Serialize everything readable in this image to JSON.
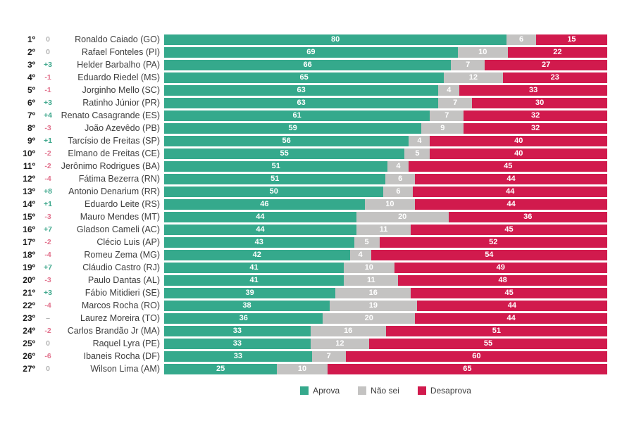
{
  "colors": {
    "aprova": "#35A98C",
    "nao_sei": "#C4C3C2",
    "desaprova": "#D11A4D",
    "change_up": "#3FA88D",
    "change_down": "#E2738E",
    "change_neutral": "#B4B4B4"
  },
  "legend": {
    "items": [
      {
        "label": "Aprova",
        "color": "#35A98C"
      },
      {
        "label": "Não sei",
        "color": "#C4C3C2"
      },
      {
        "label": "Desaprova",
        "color": "#D11A4D"
      }
    ]
  },
  "chart_data": {
    "type": "bar",
    "subtype": "horizontal-stacked",
    "unit": "%",
    "xlim": [
      0,
      100
    ],
    "grid": false,
    "legend_position": "bottom",
    "series_labels": [
      "Aprova",
      "Não sei",
      "Desaprova"
    ],
    "rows": [
      {
        "rank": "1º",
        "change": "0",
        "change_dir": "zero",
        "name": "Ronaldo Caiado (GO)",
        "aprova": 80,
        "nao_sei": 6,
        "desaprova": 15
      },
      {
        "rank": "2º",
        "change": "0",
        "change_dir": "zero",
        "name": "Rafael Fonteles (PI)",
        "aprova": 69,
        "nao_sei": 10,
        "desaprova": 22
      },
      {
        "rank": "3º",
        "change": "+3",
        "change_dir": "up",
        "name": "Helder Barbalho (PA)",
        "aprova": 66,
        "nao_sei": 7,
        "desaprova": 27
      },
      {
        "rank": "4º",
        "change": "-1",
        "change_dir": "down",
        "name": "Eduardo Riedel (MS)",
        "aprova": 65,
        "nao_sei": 12,
        "desaprova": 23
      },
      {
        "rank": "5º",
        "change": "-1",
        "change_dir": "down",
        "name": "Jorginho Mello (SC)",
        "aprova": 63,
        "nao_sei": 4,
        "desaprova": 33
      },
      {
        "rank": "6º",
        "change": "+3",
        "change_dir": "up",
        "name": "Ratinho Júnior (PR)",
        "aprova": 63,
        "nao_sei": 7,
        "desaprova": 30
      },
      {
        "rank": "7º",
        "change": "+4",
        "change_dir": "up",
        "name": "Renato Casagrande (ES)",
        "aprova": 61,
        "nao_sei": 7,
        "desaprova": 32
      },
      {
        "rank": "8º",
        "change": "-3",
        "change_dir": "down",
        "name": "João Azevêdo (PB)",
        "aprova": 59,
        "nao_sei": 9,
        "desaprova": 32
      },
      {
        "rank": "9º",
        "change": "+1",
        "change_dir": "up",
        "name": "Tarcísio de Freitas (SP)",
        "aprova": 56,
        "nao_sei": 4,
        "desaprova": 40
      },
      {
        "rank": "10º",
        "change": "-2",
        "change_dir": "down",
        "name": "Elmano de Freitas (CE)",
        "aprova": 55,
        "nao_sei": 5,
        "desaprova": 40
      },
      {
        "rank": "11º",
        "change": "-2",
        "change_dir": "down",
        "name": "Jerônimo Rodrigues (BA)",
        "aprova": 51,
        "nao_sei": 4,
        "desaprova": 45
      },
      {
        "rank": "12º",
        "change": "-4",
        "change_dir": "down",
        "name": "Fátima Bezerra (RN)",
        "aprova": 51,
        "nao_sei": 6,
        "desaprova": 44
      },
      {
        "rank": "13º",
        "change": "+8",
        "change_dir": "up",
        "name": "Antonio Denarium (RR)",
        "aprova": 50,
        "nao_sei": 6,
        "desaprova": 44
      },
      {
        "rank": "14º",
        "change": "+1",
        "change_dir": "up",
        "name": "Eduardo Leite (RS)",
        "aprova": 46,
        "nao_sei": 10,
        "desaprova": 44
      },
      {
        "rank": "15º",
        "change": "-3",
        "change_dir": "down",
        "name": "Mauro Mendes (MT)",
        "aprova": 44,
        "nao_sei": 20,
        "desaprova": 36
      },
      {
        "rank": "16º",
        "change": "+7",
        "change_dir": "up",
        "name": "Gladson Cameli (AC)",
        "aprova": 44,
        "nao_sei": 11,
        "desaprova": 45
      },
      {
        "rank": "17º",
        "change": "-2",
        "change_dir": "down",
        "name": "Clécio Luis (AP)",
        "aprova": 43,
        "nao_sei": 5,
        "desaprova": 52
      },
      {
        "rank": "18º",
        "change": "-4",
        "change_dir": "down",
        "name": "Romeu Zema (MG)",
        "aprova": 42,
        "nao_sei": 4,
        "desaprova": 54
      },
      {
        "rank": "19º",
        "change": "+7",
        "change_dir": "up",
        "name": "Cláudio Castro (RJ)",
        "aprova": 41,
        "nao_sei": 10,
        "desaprova": 49
      },
      {
        "rank": "20º",
        "change": "-3",
        "change_dir": "down",
        "name": "Paulo Dantas (AL)",
        "aprova": 41,
        "nao_sei": 11,
        "desaprova": 48
      },
      {
        "rank": "21º",
        "change": "+3",
        "change_dir": "up",
        "name": "Fábio Mitidieri (SE)",
        "aprova": 39,
        "nao_sei": 16,
        "desaprova": 45
      },
      {
        "rank": "22º",
        "change": "-4",
        "change_dir": "down",
        "name": "Marcos Rocha (RO)",
        "aprova": 38,
        "nao_sei": 19,
        "desaprova": 44
      },
      {
        "rank": "23º",
        "change": "–",
        "change_dir": "none",
        "name": "Laurez Moreira (TO)",
        "aprova": 36,
        "nao_sei": 20,
        "desaprova": 44
      },
      {
        "rank": "24º",
        "change": "-2",
        "change_dir": "down",
        "name": "Carlos Brandão Jr (MA)",
        "aprova": 33,
        "nao_sei": 16,
        "desaprova": 51
      },
      {
        "rank": "25º",
        "change": "0",
        "change_dir": "zero",
        "name": "Raquel Lyra (PE)",
        "aprova": 33,
        "nao_sei": 12,
        "desaprova": 55
      },
      {
        "rank": "26º",
        "change": "-6",
        "change_dir": "down",
        "name": "Ibaneis Rocha (DF)",
        "aprova": 33,
        "nao_sei": 7,
        "desaprova": 60
      },
      {
        "rank": "27º",
        "change": "0",
        "change_dir": "zero",
        "name": "Wilson Lima (AM)",
        "aprova": 25,
        "nao_sei": 10,
        "desaprova": 65
      }
    ]
  }
}
